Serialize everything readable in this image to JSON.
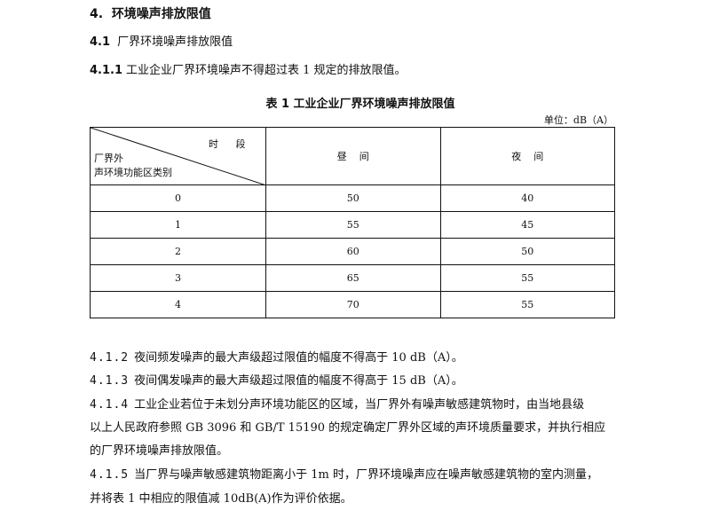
{
  "heading": {
    "number": "4.",
    "title": "环境噪声排放限值"
  },
  "section_4_1": {
    "number": "4.1",
    "title": "厂界环境噪声排放限值"
  },
  "para_4_1_1": {
    "number": "4.1.1",
    "text": "工业企业厂界环境噪声不得超过表 1 规定的排放限值。"
  },
  "table": {
    "caption": "表 1   工业企业厂界环境噪声排放限值",
    "unit": "单位：dB（A）",
    "header": {
      "period": "时 段",
      "zone_line1": "厂界外",
      "zone_line2": "声环境功能区类别",
      "day": "昼    间",
      "night": "夜    间"
    },
    "rows": [
      {
        "zone": "0",
        "day": "50",
        "night": "40"
      },
      {
        "zone": "1",
        "day": "55",
        "night": "45"
      },
      {
        "zone": "2",
        "day": "60",
        "night": "50"
      },
      {
        "zone": "3",
        "day": "65",
        "night": "55"
      },
      {
        "zone": "4",
        "day": "70",
        "night": "55"
      }
    ]
  },
  "paras": [
    {
      "number": "4.1.2",
      "text": "夜间频发噪声的最大声级超过限值的幅度不得高于 10 dB（A）。"
    },
    {
      "number": "4.1.3",
      "text": "夜间偶发噪声的最大声级超过限值的幅度不得高于 15 dB（A）。"
    },
    {
      "number": "4.1.4",
      "text": "工业企业若位于未划分声环境功能区的区域，当厂界外有噪声敏感建筑物时，由当地县级"
    },
    {
      "number": "",
      "text": "以上人民政府参照 GB 3096 和 GB/T 15190 的规定确定厂界外区域的声环境质量要求，并执行相应"
    },
    {
      "number": "",
      "text": "的厂界环境噪声排放限值。"
    },
    {
      "number": "4.1.5",
      "text": "当厂界与噪声敏感建筑物距离小于 1m 时，厂界环境噪声应在噪声敏感建筑物的室内测量，"
    },
    {
      "number": "",
      "text": "并将表 1 中相应的限值减 10dB(A)作为评价依据。"
    }
  ]
}
